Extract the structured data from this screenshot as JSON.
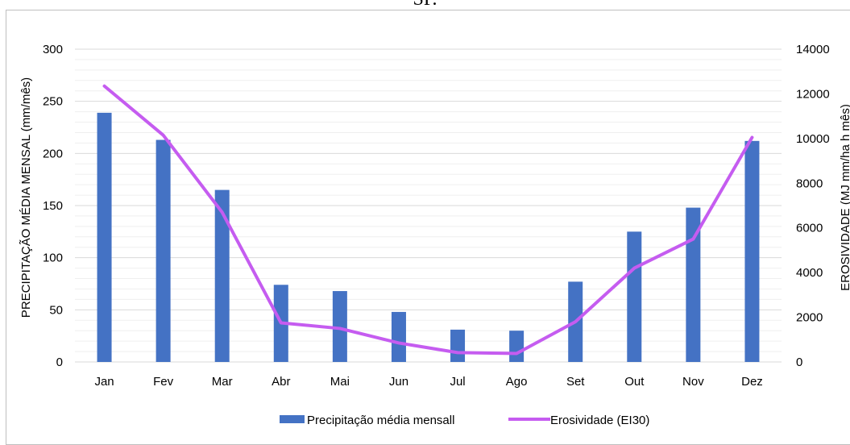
{
  "page_title": "SP.",
  "colors": {
    "bar": "#4472C4",
    "line": "#C55CF0",
    "grid": "#d9d9d9",
    "minor_grid": "#efefef",
    "frame": "#bfbfbf"
  },
  "chart_data": {
    "type": "bar",
    "title": "",
    "categories": [
      "Jan",
      "Fev",
      "Mar",
      "Abr",
      "Mai",
      "Jun",
      "Jul",
      "Ago",
      "Set",
      "Out",
      "Nov",
      "Dez"
    ],
    "ylabel": "PRECIPITAÇÃO MÉDIA MENSAL (mm/mês)",
    "y2label": "EROSIVIDADE (MJ mm/ha h mês)",
    "ylim": [
      0,
      300
    ],
    "y2lim": [
      0,
      14000
    ],
    "yticks": [
      "0",
      "50",
      "100",
      "150",
      "200",
      "250",
      "300"
    ],
    "y2ticks": [
      "0",
      "2000",
      "4000",
      "6000",
      "8000",
      "10000",
      "12000",
      "14000"
    ],
    "grid": true,
    "legend_position": "bottom",
    "series": [
      {
        "name": "Precipitação média mensall",
        "type": "bar",
        "axis": "left",
        "values": [
          239,
          213,
          165,
          74,
          68,
          48,
          31,
          30,
          77,
          125,
          148,
          212
        ]
      },
      {
        "name": "Erosividade (EI30)",
        "type": "line",
        "axis": "right",
        "values": [
          12350,
          10150,
          6700,
          1750,
          1500,
          850,
          420,
          380,
          1800,
          4200,
          5500,
          10050
        ]
      }
    ]
  }
}
